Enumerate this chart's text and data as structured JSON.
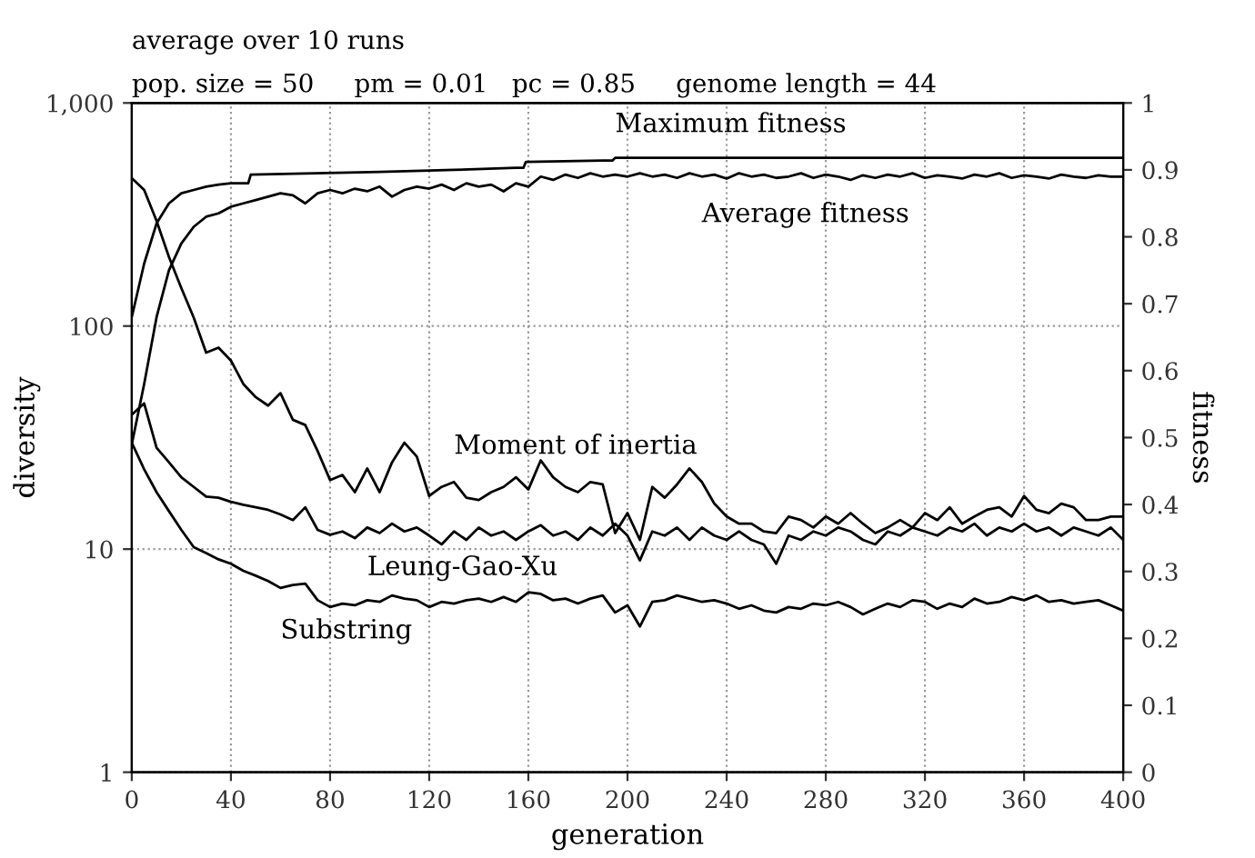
{
  "chart_data": {
    "type": "line",
    "title": "average over 10 runs",
    "subtitle": "pop. size = 50     pm = 0.01   pc = 0.85     genome length = 44",
    "xlabel": "generation",
    "ylabel": "diversity",
    "y2label": "fitness",
    "log": "y",
    "grid": true,
    "line_style": "solid",
    "xlim": [
      0,
      400
    ],
    "xticks": [
      0,
      40,
      80,
      120,
      160,
      200,
      240,
      280,
      320,
      360,
      400
    ],
    "ylim": [
      1,
      1000
    ],
    "yticks": [
      1,
      10,
      100,
      {
        "value": 1000,
        "label": "1,000"
      }
    ],
    "y2lim": [
      0,
      1
    ],
    "y2ticks": [
      0,
      0.1,
      0.2,
      0.3,
      0.4,
      0.5,
      0.6,
      0.7,
      0.8,
      0.9,
      1
    ],
    "x": [
      0,
      5,
      10,
      15,
      20,
      25,
      30,
      35,
      40,
      45,
      50,
      55,
      60,
      65,
      70,
      75,
      80,
      85,
      90,
      95,
      100,
      105,
      110,
      115,
      120,
      125,
      130,
      135,
      140,
      145,
      150,
      155,
      160,
      165,
      170,
      175,
      180,
      185,
      190,
      195,
      200,
      205,
      210,
      215,
      220,
      225,
      230,
      235,
      240,
      245,
      250,
      255,
      260,
      265,
      270,
      275,
      280,
      285,
      290,
      295,
      300,
      305,
      310,
      315,
      320,
      325,
      330,
      335,
      340,
      345,
      350,
      355,
      360,
      365,
      370,
      375,
      380,
      385,
      390,
      395,
      400
    ],
    "series": [
      {
        "name": "Maximum fitness",
        "color": "#000000",
        "axis": "y2",
        "x": [
          0,
          5,
          10,
          15,
          20,
          25,
          30,
          35,
          40,
          47,
          48,
          100,
          130,
          155,
          158,
          159,
          190,
          194,
          195,
          400
        ],
        "values": [
          0.68,
          0.76,
          0.82,
          0.85,
          0.865,
          0.87,
          0.875,
          0.878,
          0.88,
          0.88,
          0.893,
          0.897,
          0.9,
          0.903,
          0.903,
          0.912,
          0.914,
          0.914,
          0.918,
          0.918
        ]
      },
      {
        "name": "Average fitness",
        "color": "#000000",
        "axis": "y2",
        "values": [
          0.49,
          0.58,
          0.68,
          0.75,
          0.79,
          0.815,
          0.83,
          0.835,
          0.845,
          0.85,
          0.855,
          0.86,
          0.865,
          0.862,
          0.85,
          0.865,
          0.87,
          0.865,
          0.872,
          0.868,
          0.875,
          0.86,
          0.87,
          0.875,
          0.872,
          0.878,
          0.87,
          0.88,
          0.875,
          0.878,
          0.868,
          0.88,
          0.875,
          0.89,
          0.885,
          0.893,
          0.888,
          0.895,
          0.89,
          0.893,
          0.89,
          0.895,
          0.89,
          0.893,
          0.888,
          0.895,
          0.89,
          0.893,
          0.887,
          0.895,
          0.89,
          0.893,
          0.888,
          0.89,
          0.895,
          0.888,
          0.893,
          0.89,
          0.885,
          0.892,
          0.888,
          0.893,
          0.89,
          0.895,
          0.888,
          0.892,
          0.89,
          0.887,
          0.893,
          0.89,
          0.895,
          0.888,
          0.892,
          0.89,
          0.887,
          0.893,
          0.89,
          0.888,
          0.892,
          0.89,
          0.89
        ]
      },
      {
        "name": "Moment of inertia",
        "color": "#000000",
        "axis": "y",
        "values": [
          460,
          407,
          296,
          204,
          148,
          109,
          76,
          80,
          70,
          55,
          48,
          44,
          50,
          38,
          36,
          27.5,
          20.4,
          21.5,
          18,
          23,
          18,
          24.5,
          30,
          26,
          17.3,
          19,
          20,
          17,
          16.6,
          18,
          19,
          21,
          18.5,
          25,
          21,
          19,
          18,
          20,
          19.5,
          11.8,
          14.5,
          11,
          19,
          17,
          19.5,
          23,
          20,
          16,
          14,
          13,
          13,
          12,
          11.8,
          14,
          13.5,
          12.5,
          14,
          13,
          14.5,
          13,
          11.8,
          12.5,
          13.5,
          12.5,
          14.5,
          13.5,
          15.4,
          13,
          14,
          15,
          15.4,
          14,
          17.3,
          15,
          14.5,
          16,
          15.4,
          13.5,
          13.5,
          14,
          14
        ]
      },
      {
        "name": "Leung-Gao-Xu",
        "color": "#000000",
        "axis": "y",
        "values": [
          40,
          45,
          28.5,
          24.5,
          21,
          19,
          17.2,
          17,
          16.3,
          15.8,
          15.4,
          15,
          14.3,
          13.5,
          15.4,
          12.2,
          11.6,
          12,
          11.2,
          12.5,
          11.8,
          13,
          12,
          12.5,
          11.5,
          10.5,
          12,
          11,
          12.5,
          11.5,
          12,
          11,
          12,
          12.8,
          11.5,
          12,
          11,
          12.5,
          11.5,
          13,
          11.5,
          8.9,
          12,
          11.5,
          12.5,
          11,
          12.5,
          11.5,
          11,
          12,
          11,
          10.5,
          8.6,
          11.5,
          11,
          12,
          11.5,
          12.5,
          12,
          11,
          10.5,
          12,
          11.5,
          12.5,
          12,
          11.5,
          12.5,
          12,
          13,
          11.5,
          12.5,
          12,
          13,
          12,
          12.5,
          11.5,
          12.5,
          12,
          11.5,
          12.5,
          11
        ]
      },
      {
        "name": "Substring",
        "color": "#000000",
        "axis": "y",
        "values": [
          30,
          22.8,
          18,
          14.8,
          12.2,
          10.2,
          9.6,
          9,
          8.6,
          8,
          7.6,
          7.2,
          6.7,
          6.9,
          7,
          5.9,
          5.5,
          5.7,
          5.6,
          5.9,
          5.8,
          6.2,
          6,
          5.9,
          5.5,
          5.8,
          5.7,
          5.9,
          6,
          5.8,
          6.1,
          5.8,
          6.4,
          6.3,
          5.9,
          6,
          5.7,
          6,
          6.2,
          5.2,
          5.6,
          4.5,
          5.8,
          5.9,
          6.2,
          6,
          5.8,
          5.9,
          5.7,
          5.4,
          5.6,
          5.3,
          5.2,
          5.5,
          5.4,
          5.7,
          5.6,
          5.8,
          5.5,
          5.1,
          5.4,
          5.7,
          5.5,
          5.9,
          5.8,
          5.4,
          5.7,
          5.5,
          6,
          5.7,
          5.8,
          6.1,
          5.9,
          6.2,
          5.8,
          5.9,
          5.7,
          5.8,
          5.9,
          5.6,
          5.3
        ]
      }
    ]
  }
}
